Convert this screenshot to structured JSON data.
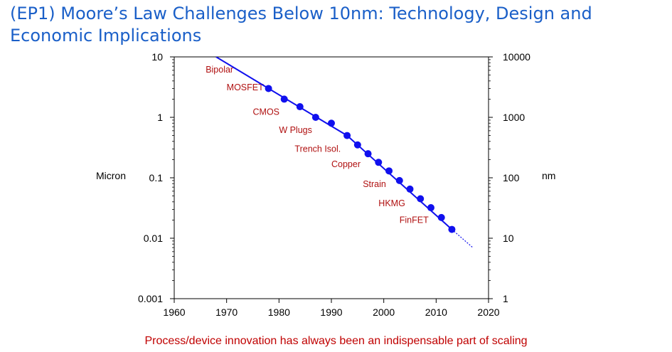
{
  "title": "(EP1) Moore’s Law Challenges Below 10nm: Technology, Design and Economic Implications",
  "caption": "Process/device innovation has always been an indispensable part of scaling",
  "chart_data": {
    "type": "scatter",
    "y_scale": "log",
    "xlim": [
      1960,
      2020
    ],
    "ylim": [
      0.001,
      10
    ],
    "ylim_right": [
      1,
      10000
    ],
    "xlabel": "",
    "ylabel": "Micron",
    "ylabel_right": "nm",
    "x_ticks": [
      "1960",
      "1970",
      "1980",
      "1990",
      "2000",
      "2010",
      "2020"
    ],
    "y_ticks_left": [
      "10",
      "1",
      "0.1",
      "0.01",
      "0.001"
    ],
    "y_ticks_right": [
      "10000",
      "1000",
      "100",
      "10",
      "1"
    ],
    "grid": false,
    "colors": {
      "series": "#1010ee",
      "labels": "#b01010",
      "caption": "#c00000",
      "title": "#1a5fc8"
    },
    "trend_line": {
      "x": [
        1968,
        1978,
        1993,
        2013
      ],
      "y": [
        10,
        3.0,
        0.5,
        0.014
      ]
    },
    "projection": {
      "x": [
        2013,
        2017
      ],
      "y": [
        0.014,
        0.007
      ]
    },
    "points": {
      "x": [
        1978,
        1981,
        1984,
        1987,
        1990,
        1993,
        1995,
        1997,
        1999,
        2001,
        2003,
        2005,
        2007,
        2009,
        2011,
        2013
      ],
      "y": [
        3.0,
        2.0,
        1.5,
        1.0,
        0.8,
        0.5,
        0.35,
        0.25,
        0.18,
        0.13,
        0.09,
        0.065,
        0.045,
        0.032,
        0.022,
        0.014
      ]
    },
    "annotations": [
      {
        "text": "Bipolar",
        "x": 1966,
        "y": 5.5
      },
      {
        "text": "MOSFET",
        "x": 1970,
        "y": 2.8
      },
      {
        "text": "CMOS",
        "x": 1975,
        "y": 1.1
      },
      {
        "text": "W Plugs",
        "x": 1980,
        "y": 0.55
      },
      {
        "text": "Trench Isol.",
        "x": 1983,
        "y": 0.27
      },
      {
        "text": "Copper",
        "x": 1990,
        "y": 0.15
      },
      {
        "text": "Strain",
        "x": 1996,
        "y": 0.07
      },
      {
        "text": "HKMG",
        "x": 1999,
        "y": 0.034
      },
      {
        "text": "FinFET",
        "x": 2003,
        "y": 0.018
      }
    ]
  }
}
